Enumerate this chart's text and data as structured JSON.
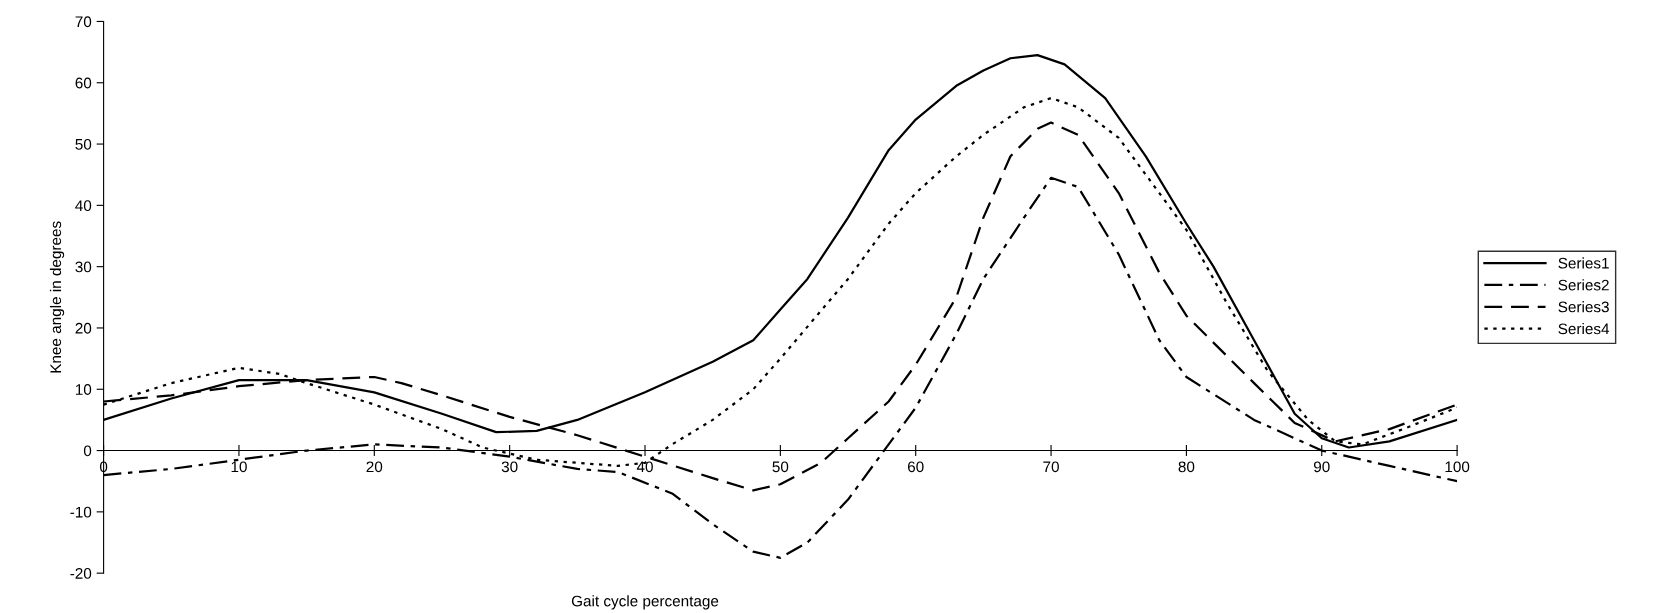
{
  "chart_data": {
    "type": "line",
    "xlabel": "Gait cycle percentage",
    "ylabel": "Knee angle in degrees",
    "xlim": [
      0,
      100
    ],
    "ylim": [
      -20,
      70
    ],
    "xticks": [
      0,
      10,
      20,
      30,
      40,
      50,
      60,
      70,
      80,
      90,
      100
    ],
    "yticks": [
      -20,
      -10,
      0,
      10,
      20,
      30,
      40,
      50,
      60,
      70
    ],
    "grid": false,
    "legend": "right",
    "marker": "none",
    "series": [
      {
        "name": "Series1",
        "color": "#000000",
        "line_style": "solid",
        "x": [
          0,
          5,
          10,
          15,
          20,
          25,
          29,
          32,
          35,
          40,
          45,
          48,
          50,
          52,
          55,
          58,
          60,
          63,
          65,
          67,
          69,
          71,
          74,
          77,
          80,
          82,
          85,
          88,
          90,
          92,
          95,
          100
        ],
        "values": [
          5,
          8.5,
          11.5,
          11.5,
          9.5,
          6,
          3,
          3.2,
          5,
          9.5,
          14.5,
          18,
          23,
          28,
          38,
          49,
          54,
          59.5,
          62,
          64,
          64.5,
          63,
          57.5,
          48,
          37,
          30,
          18,
          6,
          2,
          0.5,
          1.5,
          5
        ]
      },
      {
        "name": "Series2",
        "color": "#000000",
        "line_style": "dashdot",
        "x": [
          0,
          5,
          10,
          15,
          20,
          25,
          30,
          35,
          38,
          42,
          45,
          48,
          50,
          52,
          55,
          57,
          60,
          63,
          65,
          68,
          70,
          72,
          75,
          78,
          80,
          85,
          90,
          95,
          100
        ],
        "values": [
          -4,
          -3,
          -1.5,
          0,
          1,
          0.5,
          -1,
          -3,
          -3.5,
          -7,
          -12,
          -16.5,
          -17.5,
          -15,
          -8,
          -2,
          7,
          19,
          28,
          38,
          44.5,
          43,
          32,
          18,
          12,
          5,
          0,
          -2.5,
          -5
        ]
      },
      {
        "name": "Series3",
        "color": "#000000",
        "line_style": "dashed",
        "x": [
          0,
          5,
          10,
          15,
          20,
          22,
          25,
          30,
          35,
          40,
          45,
          48,
          50,
          53,
          55,
          58,
          60,
          63,
          65,
          67,
          69,
          70,
          72,
          75,
          78,
          80,
          85,
          88,
          91,
          95,
          100
        ],
        "values": [
          8,
          9,
          10.5,
          11.5,
          12,
          11,
          9,
          5.5,
          2.5,
          -1,
          -4.5,
          -6.5,
          -5.5,
          -2,
          2,
          8,
          14,
          25,
          38,
          48,
          52.5,
          53.5,
          51.5,
          42,
          29,
          22,
          11,
          4.5,
          1.5,
          3.5,
          7.5
        ]
      },
      {
        "name": "Series4",
        "color": "#000000",
        "line_style": "dotted",
        "x": [
          0,
          5,
          10,
          13,
          15,
          20,
          25,
          28,
          32,
          38,
          40,
          42,
          45,
          48,
          50,
          55,
          58,
          60,
          63,
          65,
          68,
          70,
          72,
          75,
          78,
          80,
          83,
          86,
          89,
          91,
          93,
          96,
          100
        ],
        "values": [
          7.5,
          11,
          13.5,
          12.5,
          11,
          7.5,
          3.5,
          0.5,
          -1.5,
          -2.5,
          -2,
          1,
          5,
          10,
          15,
          28,
          37,
          42,
          48,
          51.5,
          56,
          57.5,
          56,
          51,
          42,
          36,
          24,
          13,
          5,
          1.5,
          1,
          3.5,
          7
        ]
      }
    ]
  }
}
